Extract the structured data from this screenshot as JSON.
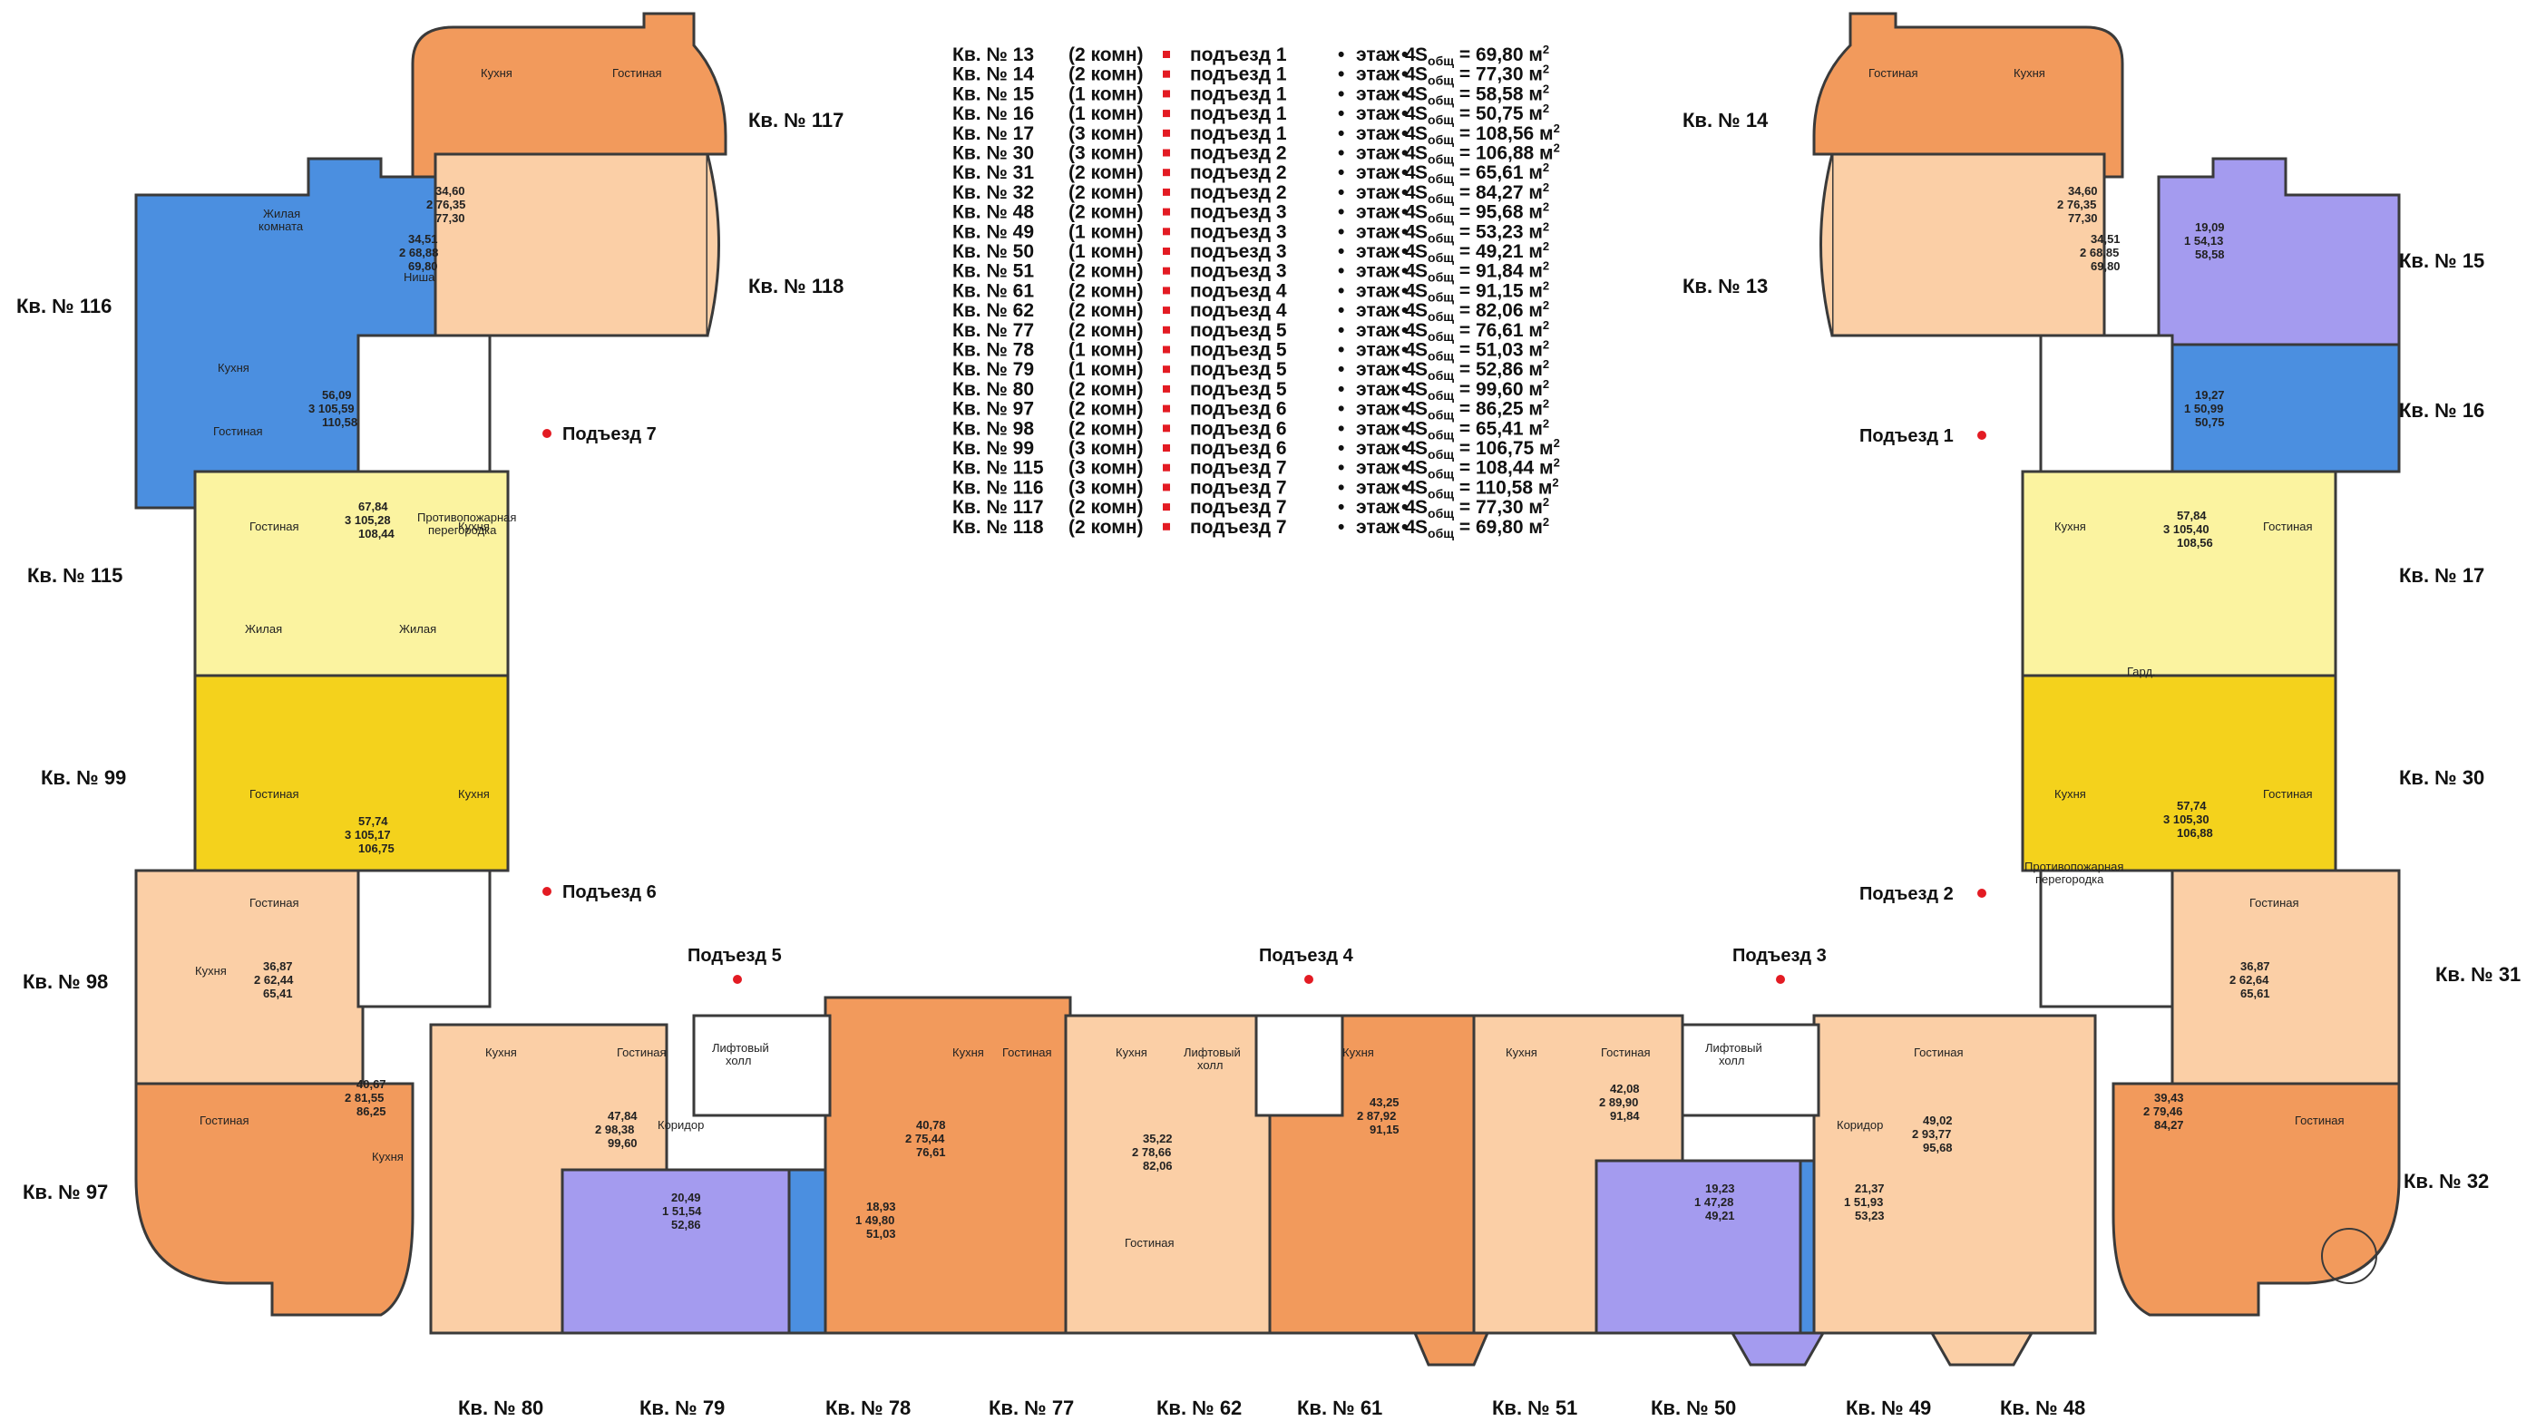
{
  "colors": {
    "orange": "#f29a5c",
    "peach": "#fbcfa6",
    "blue": "#4b8fe0",
    "lavender": "#a49bef",
    "lightyellow": "#fbf3a0",
    "yellow": "#f4d21c",
    "wall": "#3a3a3a",
    "bullet": "#e31b23"
  },
  "legend": [
    {
      "apt": "Кв. № 13",
      "rooms": "(2 комн)",
      "entrance": "подъезд 1",
      "floor": "этаж 4",
      "area": "S",
      "sub": "общ",
      "value": "= 69,80 м",
      "sup": "2"
    },
    {
      "apt": "Кв. № 14",
      "rooms": "(2 комн)",
      "entrance": "подъезд 1",
      "floor": "этаж 4",
      "area": "S",
      "sub": "общ",
      "value": "= 77,30 м",
      "sup": "2"
    },
    {
      "apt": "Кв. № 15",
      "rooms": "(1 комн)",
      "entrance": "подъезд 1",
      "floor": "этаж 4",
      "area": "S",
      "sub": "общ",
      "value": "= 58,58 м",
      "sup": "2"
    },
    {
      "apt": "Кв. № 16",
      "rooms": "(1 комн)",
      "entrance": "подъезд 1",
      "floor": "этаж 4",
      "area": "S",
      "sub": "общ",
      "value": "= 50,75 м",
      "sup": "2"
    },
    {
      "apt": "Кв. № 17",
      "rooms": "(3 комн)",
      "entrance": "подъезд 1",
      "floor": "этаж 4",
      "area": "S",
      "sub": "общ",
      "value": "= 108,56 м",
      "sup": "2"
    },
    {
      "apt": "Кв. № 30",
      "rooms": "(3 комн)",
      "entrance": "подъезд 2",
      "floor": "этаж 4",
      "area": "S",
      "sub": "общ",
      "value": "= 106,88 м",
      "sup": "2"
    },
    {
      "apt": "Кв. № 31",
      "rooms": "(2 комн)",
      "entrance": "подъезд 2",
      "floor": "этаж 4",
      "area": "S",
      "sub": "общ",
      "value": "= 65,61 м",
      "sup": "2"
    },
    {
      "apt": "Кв. № 32",
      "rooms": "(2 комн)",
      "entrance": "подъезд 2",
      "floor": "этаж 4",
      "area": "S",
      "sub": "общ",
      "value": "= 84,27 м",
      "sup": "2"
    },
    {
      "apt": "Кв. № 48",
      "rooms": "(2 комн)",
      "entrance": "подъезд 3",
      "floor": "этаж 4",
      "area": "S",
      "sub": "общ",
      "value": "= 95,68 м",
      "sup": "2"
    },
    {
      "apt": "Кв. № 49",
      "rooms": "(1 комн)",
      "entrance": "подъезд 3",
      "floor": "этаж 4",
      "area": "S",
      "sub": "общ",
      "value": "= 53,23 м",
      "sup": "2"
    },
    {
      "apt": "Кв. № 50",
      "rooms": "(1 комн)",
      "entrance": "подъезд 3",
      "floor": "этаж 4",
      "area": "S",
      "sub": "общ",
      "value": "= 49,21 м",
      "sup": "2"
    },
    {
      "apt": "Кв. № 51",
      "rooms": "(2 комн)",
      "entrance": "подъезд 3",
      "floor": "этаж 4",
      "area": "S",
      "sub": "общ",
      "value": "= 91,84 м",
      "sup": "2"
    },
    {
      "apt": "Кв. № 61",
      "rooms": "(2 комн)",
      "entrance": "подъезд 4",
      "floor": "этаж 4",
      "area": "S",
      "sub": "общ",
      "value": "= 91,15 м",
      "sup": "2"
    },
    {
      "apt": "Кв. № 62",
      "rooms": "(2 комн)",
      "entrance": "подъезд 4",
      "floor": "этаж 4",
      "area": "S",
      "sub": "общ",
      "value": "= 82,06 м",
      "sup": "2"
    },
    {
      "apt": "Кв. № 77",
      "rooms": "(2 комн)",
      "entrance": "подъезд 5",
      "floor": "этаж 4",
      "area": "S",
      "sub": "общ",
      "value": "= 76,61 м",
      "sup": "2"
    },
    {
      "apt": "Кв. № 78",
      "rooms": "(1 комн)",
      "entrance": "подъезд 5",
      "floor": "этаж 4",
      "area": "S",
      "sub": "общ",
      "value": "= 51,03 м",
      "sup": "2"
    },
    {
      "apt": "Кв. № 79",
      "rooms": "(1 комн)",
      "entrance": "подъезд 5",
      "floor": "этаж 4",
      "area": "S",
      "sub": "общ",
      "value": "= 52,86 м",
      "sup": "2"
    },
    {
      "apt": "Кв. № 80",
      "rooms": "(2 комн)",
      "entrance": "подъезд 5",
      "floor": "этаж 4",
      "area": "S",
      "sub": "общ",
      "value": "= 99,60 м",
      "sup": "2"
    },
    {
      "apt": "Кв. № 97",
      "rooms": "(2 комн)",
      "entrance": "подъезд 6",
      "floor": "этаж 4",
      "area": "S",
      "sub": "общ",
      "value": "= 86,25 м",
      "sup": "2"
    },
    {
      "apt": "Кв. № 98",
      "rooms": "(2 комн)",
      "entrance": "подъезд 6",
      "floor": "этаж 4",
      "area": "S",
      "sub": "общ",
      "value": "= 65,41 м",
      "sup": "2"
    },
    {
      "apt": "Кв. № 99",
      "rooms": "(3 комн)",
      "entrance": "подъезд 6",
      "floor": "этаж 4",
      "area": "S",
      "sub": "общ",
      "value": "= 106,75 м",
      "sup": "2"
    },
    {
      "apt": "Кв. № 115",
      "rooms": "(3 комн)",
      "entrance": "подъезд 7",
      "floor": "этаж 4",
      "area": "S",
      "sub": "общ",
      "value": "= 108,44 м",
      "sup": "2"
    },
    {
      "apt": "Кв. № 116",
      "rooms": "(3 комн)",
      "entrance": "подъезд 7",
      "floor": "этаж 4",
      "area": "S",
      "sub": "общ",
      "value": "= 110,58 м",
      "sup": "2"
    },
    {
      "apt": "Кв. № 117",
      "rooms": "(2 комн)",
      "entrance": "подъезд 7",
      "floor": "этаж 4",
      "area": "S",
      "sub": "общ",
      "value": "= 77,30 м",
      "sup": "2"
    },
    {
      "apt": "Кв. № 118",
      "rooms": "(2 комн)",
      "entrance": "подъезд 7",
      "floor": "этаж 4",
      "area": "S",
      "sub": "общ",
      "value": "= 69,80 м",
      "sup": "2"
    }
  ],
  "apartments": [
    {
      "id": "117",
      "label": "Кв. № 117",
      "summary": [
        "34,60",
        "2 76,35",
        "77,30"
      ],
      "color": "orange"
    },
    {
      "id": "118",
      "label": "Кв. № 118",
      "summary": [
        "34,51",
        "2 68,88",
        "69,80"
      ],
      "color": "peach"
    },
    {
      "id": "116",
      "label": "Кв. № 116",
      "summary": [
        "56,09",
        "3 105,59",
        "110,58"
      ],
      "color": "blue"
    },
    {
      "id": "115",
      "label": "Кв. № 115",
      "summary": [
        "67,84",
        "3 105,28",
        "108,44"
      ],
      "color": "lightyellow"
    },
    {
      "id": "99",
      "label": "Кв. № 99",
      "summary": [
        "57,74",
        "3 105,17",
        "106,75"
      ],
      "color": "yellow"
    },
    {
      "id": "98",
      "label": "Кв. № 98",
      "summary": [
        "36,87",
        "2 62,44",
        "65,41"
      ],
      "color": "peach"
    },
    {
      "id": "97",
      "label": "Кв. № 97",
      "summary": [
        "40,67",
        "2 81,55",
        "86,25"
      ],
      "color": "orange"
    },
    {
      "id": "80",
      "label": "Кв. № 80",
      "summary": [
        "47,84",
        "2 98,38",
        "99,60"
      ],
      "color": "peach"
    },
    {
      "id": "79",
      "label": "Кв. № 79",
      "summary": [
        "20,49",
        "1 51,54",
        "52,86"
      ],
      "color": "lavender"
    },
    {
      "id": "78",
      "label": "Кв. № 78",
      "summary": [
        "18,93",
        "1 49,80",
        "51,03"
      ],
      "color": "blue"
    },
    {
      "id": "77",
      "label": "Кв. № 77",
      "summary": [
        "40,78",
        "2 75,44",
        "76,61"
      ],
      "color": "orange"
    },
    {
      "id": "62",
      "label": "Кв. № 62",
      "summary": [
        "35,22",
        "2 78,66",
        "82,06"
      ],
      "color": "peach"
    },
    {
      "id": "61",
      "label": "Кв. № 61",
      "summary": [
        "43,25",
        "2 87,92",
        "91,15"
      ],
      "color": "orange"
    },
    {
      "id": "51",
      "label": "Кв. № 51",
      "summary": [
        "42,08",
        "2 89,90",
        "91,84"
      ],
      "color": "peach"
    },
    {
      "id": "50",
      "label": "Кв. № 50",
      "summary": [
        "19,23",
        "1 47,28",
        "49,21"
      ],
      "color": "lavender"
    },
    {
      "id": "49",
      "label": "Кв. № 49",
      "summary": [
        "21,37",
        "1 51,93",
        "53,23"
      ],
      "color": "blue"
    },
    {
      "id": "48",
      "label": "Кв. № 48",
      "summary": [
        "49,02",
        "2 93,77",
        "95,68"
      ],
      "color": "peach"
    },
    {
      "id": "14",
      "label": "Кв. № 14",
      "summary": [
        "34,60",
        "2 76,35",
        "77,30"
      ],
      "color": "orange"
    },
    {
      "id": "13",
      "label": "Кв. № 13",
      "summary": [
        "34,51",
        "2 68,85",
        "69,80"
      ],
      "color": "peach"
    },
    {
      "id": "15",
      "label": "Кв. № 15",
      "summary": [
        "19,09",
        "1 54,13",
        "58,58"
      ],
      "color": "lavender"
    },
    {
      "id": "16",
      "label": "Кв. № 16",
      "summary": [
        "19,27",
        "1 50,99",
        "50,75"
      ],
      "color": "blue"
    },
    {
      "id": "17",
      "label": "Кв. № 17",
      "summary": [
        "57,84",
        "3 105,40",
        "108,56"
      ],
      "color": "lightyellow"
    },
    {
      "id": "30",
      "label": "Кв. № 30",
      "summary": [
        "57,74",
        "3 105,30",
        "106,88"
      ],
      "color": "yellow"
    },
    {
      "id": "31",
      "label": "Кв. № 31",
      "summary": [
        "36,87",
        "2 62,64",
        "65,61"
      ],
      "color": "peach"
    },
    {
      "id": "32",
      "label": "Кв. № 32",
      "summary": [
        "39,43",
        "2 79,46",
        "84,27"
      ],
      "color": "orange"
    }
  ],
  "entrances": [
    {
      "id": "7",
      "label": "Подъезд 7"
    },
    {
      "id": "6",
      "label": "Подъезд 6"
    },
    {
      "id": "5",
      "label": "Подъезд 5"
    },
    {
      "id": "4",
      "label": "Подъезд 4"
    },
    {
      "id": "3",
      "label": "Подъезд 3"
    },
    {
      "id": "2",
      "label": "Подъезд 2"
    },
    {
      "id": "1",
      "label": "Подъезд 1"
    }
  ],
  "room_names": {
    "kitchen": "Кухня",
    "living": "Гостиная",
    "bedroom_1": "Жилая",
    "bedroom_2": "комната",
    "corridor": "Коридор",
    "lift": "Лифтовый",
    "lift_2": "холл",
    "niche": "Ниша",
    "wardrobe": "Гард.",
    "partition_1": "Противопожарная",
    "partition_2": "перегородка"
  }
}
